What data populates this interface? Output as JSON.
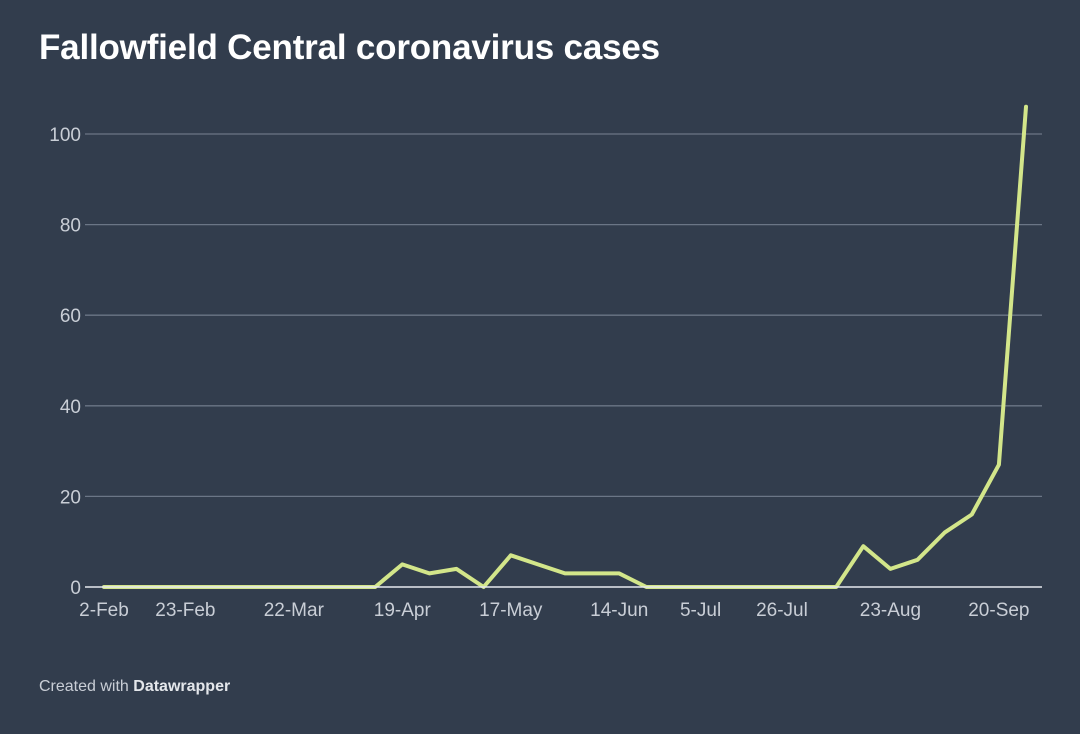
{
  "title": "Fallowfield Central coronavirus cases",
  "footer": {
    "prefix": "Created with ",
    "brand": "Datawrapper"
  },
  "colors": {
    "background": "#323d4d",
    "line": "#d3e68a",
    "grid": "#6b7686",
    "axis": "#e6e9ee",
    "text": "#c9ced6"
  },
  "chart_data": {
    "type": "line",
    "title": "Fallowfield Central coronavirus cases",
    "xlabel": "",
    "ylabel": "",
    "ylim": [
      0,
      107
    ],
    "grid": true,
    "legend": "none",
    "y_ticks": [
      0,
      20,
      40,
      60,
      80,
      100
    ],
    "x_ticks": [
      "2-Feb",
      "23-Feb",
      "22-Mar",
      "19-Apr",
      "17-May",
      "14-Jun",
      "5-Jul",
      "26-Jul",
      "23-Aug",
      "20-Sep"
    ],
    "x": [
      "2-Feb",
      "9-Feb",
      "16-Feb",
      "23-Feb",
      "1-Mar",
      "8-Mar",
      "15-Mar",
      "22-Mar",
      "29-Mar",
      "5-Apr",
      "12-Apr",
      "19-Apr",
      "26-Apr",
      "3-May",
      "10-May",
      "17-May",
      "24-May",
      "31-May",
      "7-Jun",
      "14-Jun",
      "21-Jun",
      "28-Jun",
      "5-Jul",
      "12-Jul",
      "19-Jul",
      "26-Jul",
      "2-Aug",
      "9-Aug",
      "16-Aug",
      "23-Aug",
      "30-Aug",
      "6-Sep",
      "13-Sep",
      "20-Sep",
      "27-Sep"
    ],
    "series": [
      {
        "values": [
          0,
          0,
          0,
          0,
          0,
          0,
          0,
          0,
          0,
          0,
          0,
          5,
          3,
          4,
          0,
          7,
          5,
          3,
          3,
          3,
          0,
          0,
          0,
          0,
          0,
          0,
          0,
          0,
          9,
          4,
          6,
          12,
          16,
          27,
          106
        ]
      }
    ]
  }
}
